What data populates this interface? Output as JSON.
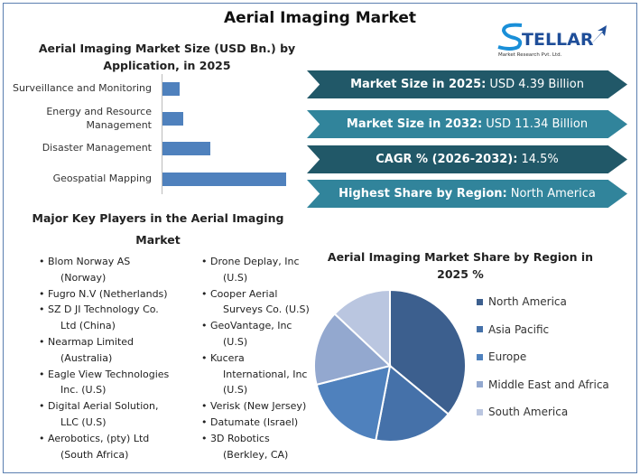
{
  "title": "Aerial Imaging Market",
  "logo": {
    "text": "STELLAR",
    "subtext": "Market Research Pvt. Ltd."
  },
  "chart_data": [
    {
      "type": "bar",
      "orientation": "horizontal",
      "title": "Aerial Imaging Market Size (USD Bn.) by Application, in 2025",
      "categories": [
        "Surveillance and Monitoring",
        "Energy and Resource Management",
        "Disaster Management",
        "Geospatial Mapping"
      ],
      "values": [
        0.36,
        0.44,
        1.0,
        2.59
      ],
      "color": "#4f81bd"
    },
    {
      "type": "pie",
      "title": "Aerial Imaging Market Share by Region in 2025 %",
      "categories": [
        "North America",
        "Asia Pacific",
        "Europe",
        "Middle East and Africa",
        "South America"
      ],
      "values": [
        36,
        17,
        18,
        16,
        13
      ],
      "colors": [
        "#3c5f8e",
        "#4571a9",
        "#4f81bd",
        "#93a8cf",
        "#bac6e0"
      ],
      "legend": "right"
    }
  ],
  "banners": [
    {
      "label": "Market Size in 2025:",
      "value": "USD 4.39 Billion",
      "color": "#215868"
    },
    {
      "label": "Market Size in 2032:",
      "value": "USD 11.34 Billion",
      "color": "#31849b"
    },
    {
      "label": "CAGR % (2026-2032):",
      "value": "14.5%",
      "color": "#215868"
    },
    {
      "label": "Highest Share by Region:",
      "value": "North America",
      "color": "#31849b"
    }
  ],
  "players": {
    "title": "Major Key Players in the Aerial Imaging Market",
    "col1": [
      [
        "Blom Norway AS",
        "(Norway)"
      ],
      [
        "Fugro N.V (Netherlands)"
      ],
      [
        "SZ D JI Technology Co.",
        "Ltd (China)"
      ],
      [
        "Nearmap Limited",
        "(Australia)"
      ],
      [
        "Eagle View Technologies",
        "Inc. (U.S)"
      ],
      [
        "Digital Aerial Solution,",
        "LLC (U.S)"
      ],
      [
        "Aerobotics, (pty) Ltd",
        "(South Africa)"
      ]
    ],
    "col2": [
      [
        "Drone Deplay, Inc",
        "(U.S)"
      ],
      [
        "Cooper Aerial",
        "Surveys Co. (U.S)"
      ],
      [
        "GeoVantage, Inc",
        "(U.S)"
      ],
      [
        "Kucera",
        "International, Inc",
        "(U.S)"
      ],
      [
        "Verisk (New Jersey)"
      ],
      [
        "Datumate (Israel)"
      ],
      [
        "3D Robotics",
        "(Berkley, CA)"
      ]
    ]
  }
}
